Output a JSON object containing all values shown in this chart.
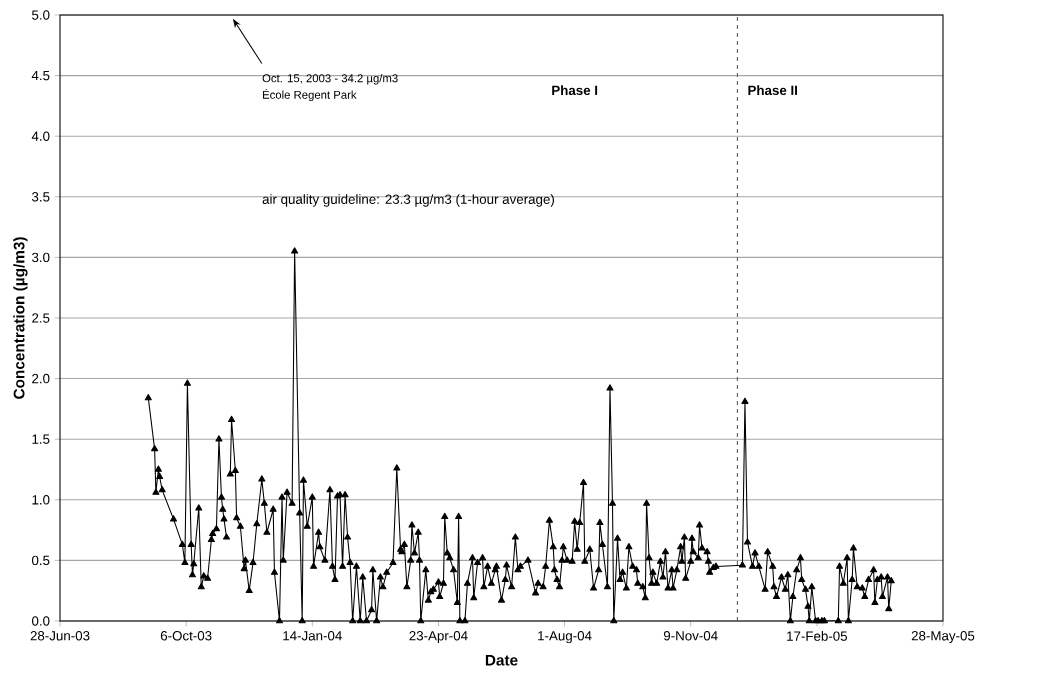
{
  "chart_data": {
    "type": "line",
    "xlabel": "Date",
    "ylabel": "Concentration (µg/m3)",
    "xlim": [
      "2003-06-28",
      "2005-05-28"
    ],
    "xticks": [
      {
        "value": "2003-06-28",
        "label": "28-Jun-03"
      },
      {
        "value": "2003-10-06",
        "label": "6-Oct-03"
      },
      {
        "value": "2004-01-14",
        "label": "14-Jan-04"
      },
      {
        "value": "2004-04-23",
        "label": "23-Apr-04"
      },
      {
        "value": "2004-08-01",
        "label": "1-Aug-04"
      },
      {
        "value": "2004-11-09",
        "label": "9-Nov-04"
      },
      {
        "value": "2005-02-17",
        "label": "17-Feb-05"
      },
      {
        "value": "2005-05-28",
        "label": "28-May-05"
      }
    ],
    "ylim": [
      0,
      5
    ],
    "yticks": [
      {
        "value": 0,
        "label": "0.0"
      },
      {
        "value": 0.5,
        "label": "0.5"
      },
      {
        "value": 1,
        "label": "1.0"
      },
      {
        "value": 1.5,
        "label": "1.5"
      },
      {
        "value": 2,
        "label": "2.0"
      },
      {
        "value": 2.5,
        "label": "2.5"
      },
      {
        "value": 3,
        "label": "3.0"
      },
      {
        "value": 3.5,
        "label": "3.5"
      },
      {
        "value": 4,
        "label": "4.0"
      },
      {
        "value": 4.5,
        "label": "4.5"
      },
      {
        "value": 5,
        "label": "5.0"
      }
    ],
    "grid": "y",
    "marker": "triangle",
    "line_style": "solid",
    "ref_lines": [
      {
        "axis": "x",
        "value": "2004-12-16",
        "line_style": "dashed",
        "color": "#555555"
      }
    ],
    "annotations": [
      "Oct. 15, 2003 - 34.2 µg/m3",
      "École Regent Park",
      "Phase I",
      "Phase II",
      "air quality guideline: 23.3 µg/m3 (1-hour average)"
    ],
    "series": [
      {
        "color": "#000000",
        "x": [
          "2003-09-06",
          "2003-09-11",
          "2003-09-12",
          "2003-09-14",
          "2003-09-15",
          "2003-09-17",
          "2003-09-26",
          "2003-10-03",
          "2003-10-05",
          "2003-10-07",
          "2003-10-10",
          "2003-10-11",
          "2003-10-12",
          "2003-10-16",
          "2003-10-18",
          "2003-10-20",
          "2003-10-23",
          "2003-10-26",
          "2003-10-27",
          "2003-10-30",
          "2003-11-01",
          "2003-11-03",
          "2003-11-04",
          "2003-11-05",
          "2003-11-07",
          "2003-11-08",
          "2003-11-10",
          "2003-11-11",
          "2003-11-14",
          "2003-11-15",
          "2003-11-18",
          "2003-11-21",
          "2003-11-22",
          "2003-11-25",
          "2003-11-28",
          "2003-12-01",
          "2003-12-05",
          "2003-12-07",
          "2003-12-09",
          "2003-12-14",
          "2003-12-15",
          "2003-12-19",
          "2003-12-21",
          "2003-12-22",
          "2003-12-25",
          "2003-12-29",
          "2003-12-31",
          "2004-01-04",
          "2004-01-06",
          "2004-01-07",
          "2004-01-10",
          "2004-01-14",
          "2004-01-15",
          "2004-01-19",
          "2004-01-20",
          "2004-01-24",
          "2004-01-28",
          "2004-01-30",
          "2004-02-01",
          "2004-02-03",
          "2004-02-05",
          "2004-02-07",
          "2004-02-09",
          "2004-02-11",
          "2004-02-13",
          "2004-02-15",
          "2004-02-18",
          "2004-02-21",
          "2004-02-23",
          "2004-02-26",
          "2004-03-01",
          "2004-03-02",
          "2004-03-05",
          "2004-03-08",
          "2004-03-10",
          "2004-03-13",
          "2004-03-18",
          "2004-03-21",
          "2004-03-24",
          "2004-03-25",
          "2004-03-27",
          "2004-03-29",
          "2004-04-01",
          "2004-04-02",
          "2004-04-04",
          "2004-04-07",
          "2004-04-08",
          "2004-04-09",
          "2004-04-13",
          "2004-04-15",
          "2004-04-17",
          "2004-04-19",
          "2004-04-23",
          "2004-04-24",
          "2004-04-27",
          "2004-04-28",
          "2004-04-30",
          "2004-05-02",
          "2004-05-05",
          "2004-05-08",
          "2004-05-09",
          "2004-05-10",
          "2004-05-14",
          "2004-05-16",
          "2004-05-20",
          "2004-05-21",
          "2004-05-24",
          "2004-05-28",
          "2004-05-29",
          "2004-06-01",
          "2004-06-04",
          "2004-06-07",
          "2004-06-08",
          "2004-06-12",
          "2004-06-15",
          "2004-06-16",
          "2004-06-20",
          "2004-06-23",
          "2004-06-25",
          "2004-06-27",
          "2004-07-03",
          "2004-07-09",
          "2004-07-11",
          "2004-07-15",
          "2004-07-17",
          "2004-07-20",
          "2004-07-23",
          "2004-07-24",
          "2004-07-26",
          "2004-07-28",
          "2004-07-30",
          "2004-07-31",
          "2004-08-03",
          "2004-08-07",
          "2004-08-09",
          "2004-08-11",
          "2004-08-13",
          "2004-08-16",
          "2004-08-17",
          "2004-08-21",
          "2004-08-24",
          "2004-08-28",
          "2004-08-29",
          "2004-08-31",
          "2004-09-04",
          "2004-09-06",
          "2004-09-08",
          "2004-09-09",
          "2004-09-12",
          "2004-09-14",
          "2004-09-16",
          "2004-09-19",
          "2004-09-21",
          "2004-09-24",
          "2004-09-27",
          "2004-09-28",
          "2004-10-02",
          "2004-10-04",
          "2004-10-05",
          "2004-10-07",
          "2004-10-09",
          "2004-10-10",
          "2004-10-13",
          "2004-10-16",
          "2004-10-18",
          "2004-10-20",
          "2004-10-22",
          "2004-10-25",
          "2004-10-26",
          "2004-10-29",
          "2004-11-01",
          "2004-11-02",
          "2004-11-04",
          "2004-11-05",
          "2004-11-09",
          "2004-11-10",
          "2004-11-11",
          "2004-11-15",
          "2004-11-16",
          "2004-11-18",
          "2004-11-22",
          "2004-11-23",
          "2004-11-24",
          "2004-11-27",
          "2004-11-29",
          "2004-12-20",
          "2004-12-22",
          "2004-12-24",
          "2004-12-28",
          "2004-12-30",
          "2005-01-02",
          "2005-01-07",
          "2005-01-09",
          "2005-01-13",
          "2005-01-14",
          "2005-01-16",
          "2005-01-20",
          "2005-01-23",
          "2005-01-25",
          "2005-01-27",
          "2005-01-29",
          "2005-02-01",
          "2005-02-04",
          "2005-02-05",
          "2005-02-08",
          "2005-02-10",
          "2005-02-11",
          "2005-02-13",
          "2005-02-16",
          "2005-02-18",
          "2005-02-21",
          "2005-02-23",
          "2005-03-06",
          "2005-03-07",
          "2005-03-10",
          "2005-03-13",
          "2005-03-14",
          "2005-03-17",
          "2005-03-18",
          "2005-03-21",
          "2005-03-25",
          "2005-03-27",
          "2005-03-30",
          "2005-04-03",
          "2005-04-04",
          "2005-04-06",
          "2005-04-09",
          "2005-04-10",
          "2005-04-14",
          "2005-04-15",
          "2005-04-17"
        ],
        "values": [
          1.84,
          1.42,
          1.06,
          1.25,
          1.19,
          1.08,
          0.84,
          0.63,
          0.48,
          1.96,
          0.63,
          0.38,
          0.47,
          0.93,
          0.28,
          0.37,
          0.35,
          0.67,
          0.72,
          0.76,
          1.5,
          1.02,
          0.92,
          0.84,
          0.69,
          null,
          1.21,
          1.66,
          1.24,
          0.85,
          0.78,
          0.43,
          0.5,
          0.25,
          0.48,
          0.8,
          1.17,
          0.97,
          0.73,
          0.92,
          0.4,
          0,
          1.02,
          0.5,
          1.06,
          0.97,
          3.05,
          0.89,
          0,
          1.16,
          0.78,
          1.02,
          0.45,
          0.73,
          0.61,
          0.5,
          1.08,
          0.45,
          0.34,
          1.03,
          1.04,
          0.45,
          1.04,
          0.69,
          0.48,
          0,
          0.45,
          0,
          0.36,
          0,
          0.09,
          0.42,
          0,
          0.36,
          0.28,
          0.4,
          0.48,
          1.26,
          0.59,
          0.57,
          0.63,
          0.28,
          0.5,
          0.79,
          0.56,
          0.73,
          0.5,
          0,
          0.42,
          0.17,
          0.24,
          0.26,
          0.32,
          0.2,
          0.31,
          0.86,
          0.56,
          0.52,
          0.42,
          0.15,
          0.86,
          0,
          0,
          0.31,
          0.52,
          0.19,
          0.48,
          0.52,
          0.28,
          0.45,
          0.31,
          0.42,
          0.45,
          0.17,
          0.34,
          0.46,
          0.28,
          0.69,
          0.42,
          0.45,
          0.5,
          0.23,
          0.31,
          0.28,
          0.45,
          0.83,
          0.61,
          0.42,
          0.34,
          0.28,
          0.5,
          0.61,
          0.5,
          0.49,
          0.82,
          0.59,
          0.81,
          1.14,
          0.49,
          0.59,
          0.27,
          0.42,
          0.81,
          0.63,
          0.28,
          1.92,
          0.97,
          0,
          0.68,
          0.34,
          0.4,
          0.27,
          0.61,
          0.45,
          0.42,
          0.31,
          0.28,
          0.19,
          0.97,
          0.52,
          0.31,
          0.4,
          0.31,
          0.49,
          0.36,
          0.57,
          0.27,
          0.42,
          0.27,
          0.42,
          0.61,
          0.49,
          0.69,
          0.35,
          0.49,
          0.68,
          0.57,
          0.52,
          0.79,
          0.6,
          0.57,
          0.49,
          0.4,
          0.44,
          0.45,
          0.46,
          1.81,
          0.65,
          0.45,
          0.56,
          0.45,
          0.26,
          0.57,
          0.45,
          0.28,
          0.2,
          0.36,
          0.26,
          0.38,
          0,
          0.2,
          0.42,
          0.52,
          0.34,
          0.26,
          0.12,
          0,
          0.28,
          0,
          0,
          0,
          0,
          0,
          0.45,
          0.31,
          0.52,
          0,
          0.34,
          0.6,
          0.28,
          0.27,
          0.2,
          0.34,
          0.42,
          0.15,
          0.34,
          0.36,
          0.2,
          0.36,
          0.1,
          0.33
        ]
      }
    ]
  }
}
